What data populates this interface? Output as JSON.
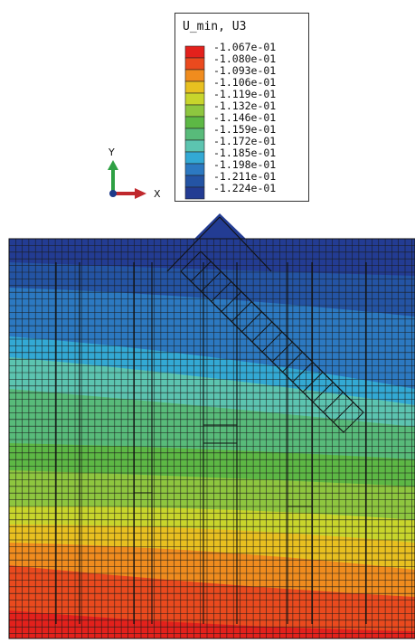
{
  "legend": {
    "title": "U_min, U3",
    "levels": [
      {
        "label": "-1.067e-01",
        "color": "#e3211c"
      },
      {
        "label": "-1.080e-01",
        "color": "#ea4a1e"
      },
      {
        "label": "-1.093e-01",
        "color": "#f08c1e"
      },
      {
        "label": "-1.106e-01",
        "color": "#e8c020"
      },
      {
        "label": "-1.119e-01",
        "color": "#c8d52c"
      },
      {
        "label": "-1.132e-01",
        "color": "#8ec63f"
      },
      {
        "label": "-1.146e-01",
        "color": "#5db845"
      },
      {
        "label": "-1.159e-01",
        "color": "#58bb7a"
      },
      {
        "label": "-1.172e-01",
        "color": "#5cc4b0"
      },
      {
        "label": "-1.185e-01",
        "color": "#33a9d4"
      },
      {
        "label": "-1.198e-01",
        "color": "#2c79c1"
      },
      {
        "label": "-1.211e-01",
        "color": "#2454a4"
      },
      {
        "label": "-1.224e-01",
        "color": "#233c93"
      }
    ]
  },
  "triad": {
    "y_label": "Y",
    "x_label": "X",
    "y_color": "#2ea043",
    "x_color": "#c0282d",
    "origin_color": "#1e3a8a"
  }
}
